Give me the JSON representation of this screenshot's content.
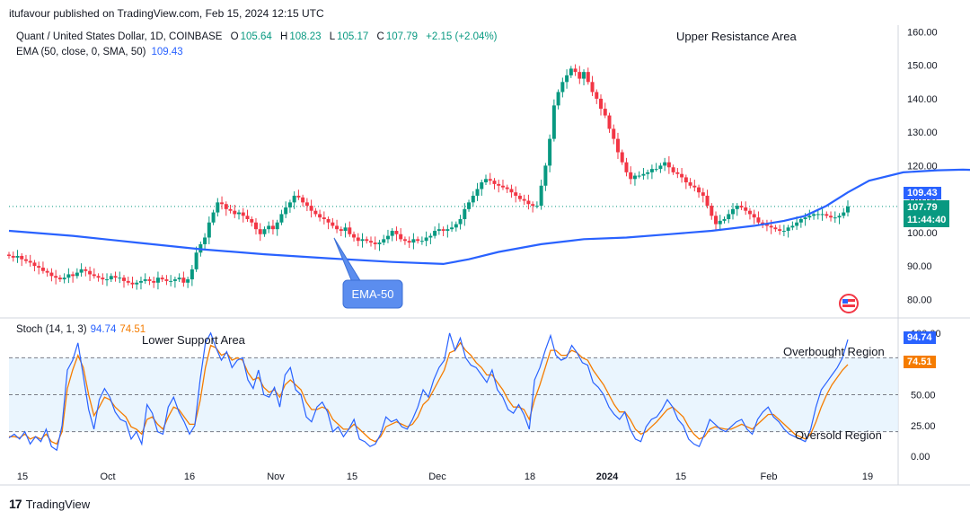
{
  "header": {
    "published": "itufavour published on TradingView.com, Feb 15, 2024 12:15 UTC"
  },
  "legend": {
    "symbol": "Quant / United States Dollar, 1D, COINBASE",
    "open_label": "O",
    "open": "105.64",
    "high_label": "H",
    "high": "108.23",
    "low_label": "L",
    "low": "105.17",
    "close_label": "C",
    "close": "107.79",
    "change": "+2.15 (+2.04%)",
    "ema_label": "EMA (50, close, 0, SMA, 50)",
    "ema_value": "109.43",
    "stoch_label": "Stoch (14, 1, 3)",
    "stoch_k": "94.74",
    "stoch_d": "74.51"
  },
  "price_tags": {
    "ema": "109.43",
    "close": "107.79",
    "countdown": "11:44:40",
    "stoch_k": "94.74",
    "stoch_d": "74.51"
  },
  "annotations": {
    "upper": "Upper Resistance Area",
    "lower": "Lower Support Area",
    "ema_callout": "EMA-50",
    "overbought": "Overbought Region",
    "oversold": "Oversold Region"
  },
  "footer": {
    "brand": "TradingView"
  },
  "colors": {
    "up": "#089981",
    "down": "#f23645",
    "ema": "#2962ff",
    "k": "#2962ff",
    "d": "#f57c00",
    "band": "#e3f2fd",
    "callout": "#5b8def"
  },
  "chart_data": [
    {
      "type": "candlestick",
      "title": "Quant / United States Dollar, 1D, COINBASE",
      "ylim": [
        75,
        162
      ],
      "y_ticks": [
        "160.00",
        "150.00",
        "140.00",
        "130.00",
        "120.00",
        "110.00",
        "100.00",
        "90.00",
        "80.00"
      ],
      "x_ticks": [
        "15",
        "Oct",
        "16",
        "Nov",
        "15",
        "Dec",
        "18",
        "2024",
        "15",
        "Feb",
        "19"
      ],
      "series": [
        {
          "name": "EMA (50, close, 0, SMA, 50)",
          "x": [
            0,
            15,
            30,
            45,
            60,
            75,
            90,
            102,
            108,
            115,
            125,
            135,
            145,
            155,
            165,
            175,
            182,
            187,
            192,
            197,
            202,
            210,
            218,
            224,
            229,
            234,
            239,
            242,
            247,
            256,
            267
          ],
          "values": [
            100.5,
            99,
            97,
            95,
            93.5,
            92.3,
            91.2,
            90.6,
            92,
            94.2,
            96.5,
            98,
            98.5,
            99.5,
            100.5,
            102,
            103.5,
            105,
            108,
            112,
            115.5,
            118,
            118.6,
            118.8,
            118.6,
            118,
            117,
            116,
            114.5,
            112,
            109.43
          ]
        }
      ],
      "candles_close": [
        93,
        92.5,
        93,
        92,
        91.5,
        91,
        90,
        89.5,
        88.5,
        88,
        87,
        86.5,
        86,
        86.5,
        87.5,
        87,
        88,
        89,
        88.5,
        87.5,
        87,
        86.5,
        86,
        86,
        87,
        86.5,
        86.5,
        85.5,
        85,
        84.5,
        85,
        85.5,
        86,
        85.5,
        85,
        86.5,
        86,
        85.5,
        85.5,
        86,
        86.5,
        85,
        86,
        89,
        94,
        96.5,
        98.5,
        103,
        106,
        109,
        108.5,
        107,
        106.5,
        105.5,
        106,
        105,
        104,
        103,
        101,
        99.5,
        101,
        102,
        101,
        103,
        105.5,
        107.5,
        109,
        111,
        110.5,
        109,
        108,
        106.5,
        105.5,
        104.5,
        104,
        103,
        102,
        101,
        100.5,
        101.5,
        99.5,
        98.5,
        97.5,
        98,
        97.5,
        97,
        96.5,
        97,
        98,
        99,
        100.5,
        99.5,
        98,
        97.5,
        97,
        98,
        97.5,
        97.5,
        98.5,
        99,
        100.5,
        101,
        100.5,
        101,
        101.5,
        102.5,
        104,
        107,
        109,
        111,
        113,
        115,
        116,
        115.5,
        114.5,
        114,
        113.5,
        113,
        112,
        111,
        110,
        109.5,
        108.5,
        108,
        108,
        114,
        120,
        128,
        138,
        142,
        145,
        147,
        149,
        148,
        146,
        148,
        145,
        142,
        140,
        137,
        135,
        131,
        128,
        124,
        121,
        118,
        116,
        117,
        117,
        117.5,
        118,
        119,
        119,
        120,
        121,
        119.5,
        118,
        117.5,
        116.5,
        115,
        114,
        113.5,
        112,
        111,
        108,
        105,
        102.5,
        103.5,
        104,
        105.5,
        107,
        108,
        107.5,
        106.5,
        105.5,
        104.5,
        103,
        102.5,
        102,
        101.5,
        101,
        100.5,
        100.5,
        101.5,
        102,
        103,
        104,
        104.5,
        105,
        105.5,
        105.5,
        105.5,
        105,
        104.5,
        104.5,
        105,
        106,
        107.79
      ]
    },
    {
      "type": "line",
      "title": "Stoch (14, 1, 3)",
      "ylim": [
        -5,
        105
      ],
      "y_ticks": [
        "100.00",
        "75.00",
        "50.00",
        "25.00",
        "0.00"
      ],
      "series": [
        {
          "name": "%K",
          "values": [
            15,
            18,
            14,
            20,
            10,
            16,
            12,
            22,
            8,
            5,
            25,
            70,
            78,
            92,
            65,
            38,
            22,
            46,
            55,
            48,
            36,
            30,
            28,
            14,
            20,
            10,
            42,
            35,
            20,
            18,
            40,
            48,
            36,
            28,
            18,
            25,
            62,
            92,
            100,
            88,
            78,
            85,
            72,
            78,
            80,
            62,
            55,
            70,
            50,
            48,
            56,
            40,
            66,
            72,
            54,
            50,
            32,
            28,
            40,
            44,
            36,
            20,
            24,
            16,
            22,
            30,
            14,
            12,
            8,
            10,
            18,
            32,
            28,
            30,
            24,
            22,
            30,
            40,
            54,
            48,
            62,
            72,
            78,
            100,
            86,
            96,
            80,
            74,
            72,
            66,
            60,
            70,
            54,
            48,
            38,
            35,
            42,
            34,
            22,
            62,
            72,
            86,
            98,
            82,
            78,
            80,
            90,
            84,
            76,
            74,
            60,
            56,
            50,
            40,
            34,
            30,
            36,
            22,
            14,
            12,
            24,
            30,
            32,
            38,
            46,
            40,
            30,
            25,
            14,
            10,
            8,
            18,
            30,
            26,
            22,
            20,
            24,
            28,
            30,
            22,
            18,
            30,
            36,
            40,
            32,
            28,
            22,
            18,
            16,
            14,
            12,
            22,
            40,
            54,
            60,
            66,
            72,
            80,
            94.74
          ]
        },
        {
          "name": "%D",
          "values": [
            16,
            16,
            15,
            18,
            14,
            16,
            14,
            18,
            12,
            10,
            20,
            55,
            70,
            82,
            72,
            50,
            33,
            40,
            48,
            46,
            40,
            36,
            32,
            24,
            22,
            18,
            30,
            32,
            26,
            22,
            32,
            40,
            38,
            32,
            26,
            26,
            45,
            72,
            90,
            88,
            82,
            84,
            78,
            80,
            78,
            68,
            62,
            64,
            56,
            52,
            54,
            48,
            58,
            62,
            58,
            54,
            44,
            38,
            38,
            40,
            38,
            30,
            26,
            22,
            22,
            26,
            22,
            18,
            14,
            12,
            16,
            24,
            26,
            28,
            26,
            24,
            26,
            32,
            42,
            46,
            54,
            62,
            70,
            84,
            86,
            92,
            86,
            82,
            76,
            72,
            66,
            66,
            60,
            54,
            46,
            40,
            40,
            38,
            30,
            46,
            58,
            72,
            86,
            86,
            82,
            82,
            86,
            84,
            80,
            78,
            70,
            64,
            58,
            50,
            42,
            36,
            36,
            30,
            22,
            18,
            20,
            24,
            28,
            33,
            38,
            40,
            36,
            32,
            24,
            18,
            14,
            16,
            22,
            24,
            23,
            22,
            22,
            24,
            26,
            24,
            22,
            26,
            30,
            34,
            34,
            30,
            26,
            22,
            18,
            16,
            14,
            18,
            28,
            40,
            50,
            58,
            64,
            70,
            74.51
          ]
        }
      ]
    }
  ]
}
